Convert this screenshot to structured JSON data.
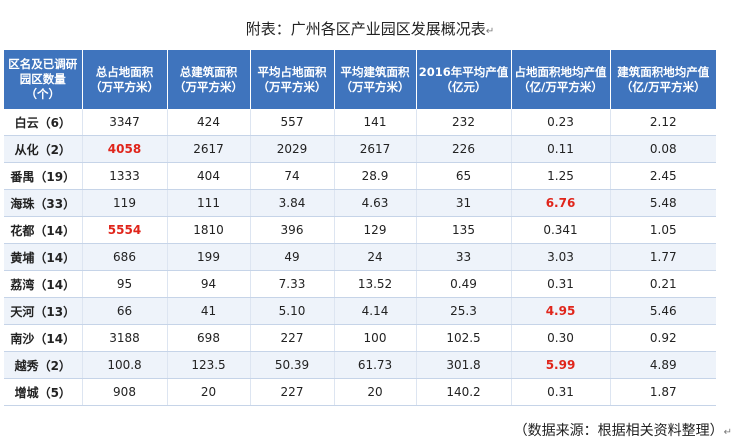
{
  "title": "附表：广州各区产业园区发展概况表",
  "paragraph_mark": "↵",
  "headers": [
    "区名及已调研园区数量（个）",
    "总占地面积（万平方米）",
    "总建筑面积（万平方米）",
    "平均占地面积（万平方米）",
    "平均建筑面积（万平方米）",
    "2016年平均产值（亿元）",
    "占地面积地均产值（亿/万平方米）",
    "建筑面积地均产值（亿/万平方米）"
  ],
  "rows": [
    [
      "白云（6）",
      "3347",
      "424",
      "557",
      "141",
      "232",
      "0.23",
      "2.12"
    ],
    [
      "从化（2）",
      "4058",
      "2617",
      "2029",
      "2617",
      "226",
      "0.11",
      "0.08"
    ],
    [
      "番禺（19）",
      "1333",
      "404",
      "74",
      "28.9",
      "65",
      "1.25",
      "2.45"
    ],
    [
      "海珠（33）",
      "119",
      "111",
      "3.84",
      "4.63",
      "31",
      "6.76",
      "5.48"
    ],
    [
      "花都（14）",
      "5554",
      "1810",
      "396",
      "129",
      "135",
      "0.341",
      "1.05"
    ],
    [
      "黄埔（14）",
      "686",
      "199",
      "49",
      "24",
      "33",
      "3.03",
      "1.77"
    ],
    [
      "荔湾（14）",
      "95",
      "94",
      "7.33",
      "13.52",
      "0.49",
      "0.31",
      "0.21"
    ],
    [
      "天河（13）",
      "66",
      "41",
      "5.10",
      "4.14",
      "25.3",
      "4.95",
      "5.46"
    ],
    [
      "南沙（14）",
      "3188",
      "698",
      "227",
      "100",
      "102.5",
      "0.30",
      "0.92"
    ],
    [
      "越秀（2）",
      "100.8",
      "123.5",
      "50.39",
      "61.73",
      "301.8",
      "5.99",
      "4.89"
    ],
    [
      "增城（5）",
      "908",
      "20",
      "227",
      "20",
      "140.2",
      "0.31",
      "1.87"
    ]
  ],
  "highlights": [
    [
      1,
      1
    ],
    [
      3,
      6
    ],
    [
      4,
      1
    ],
    [
      7,
      6
    ],
    [
      9,
      6
    ]
  ],
  "source": "（数据来源：根据相关资料整理）",
  "colors": {
    "header_bg": "#3f74bd",
    "highlight": "#e0251b",
    "alt_row": "#eef3fa"
  }
}
